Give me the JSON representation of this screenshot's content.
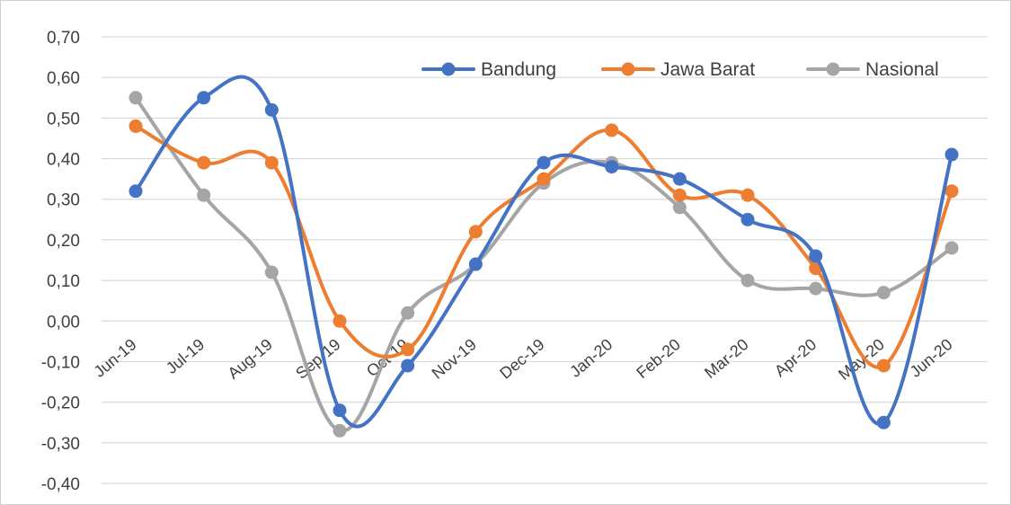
{
  "chart_data": {
    "type": "line",
    "smooth": true,
    "title": "",
    "xlabel": "",
    "ylabel": "",
    "categories": [
      "Jun-19",
      "Jul-19",
      "Aug-19",
      "Sep-19",
      "Oct-19",
      "Nov-19",
      "Dec-19",
      "Jan-20",
      "Feb-20",
      "Mar-20",
      "Apr-20",
      "May-20",
      "Jun-20"
    ],
    "yticks": [
      "-0,40",
      "-0,30",
      "-0,20",
      "-0,10",
      "0,00",
      "0,10",
      "0,20",
      "0,30",
      "0,40",
      "0,50",
      "0,60",
      "0,70"
    ],
    "ylim": [
      -0.4,
      0.7
    ],
    "grid": true,
    "legend_position": "top-right",
    "series": [
      {
        "name": "Bandung",
        "color": "#4472C4",
        "values": [
          0.32,
          0.55,
          0.52,
          -0.22,
          -0.11,
          0.14,
          0.39,
          0.38,
          0.35,
          0.25,
          0.16,
          -0.25,
          0.41
        ]
      },
      {
        "name": "Jawa Barat",
        "color": "#ED7D31",
        "values": [
          0.48,
          0.39,
          0.39,
          0.0,
          -0.07,
          0.22,
          0.35,
          0.47,
          0.31,
          0.31,
          0.13,
          -0.11,
          0.32
        ]
      },
      {
        "name": "Nasional",
        "color": "#A5A5A5",
        "values": [
          0.55,
          0.31,
          0.12,
          -0.27,
          0.02,
          0.14,
          0.34,
          0.39,
          0.28,
          0.1,
          0.08,
          0.07,
          0.18
        ]
      }
    ]
  }
}
